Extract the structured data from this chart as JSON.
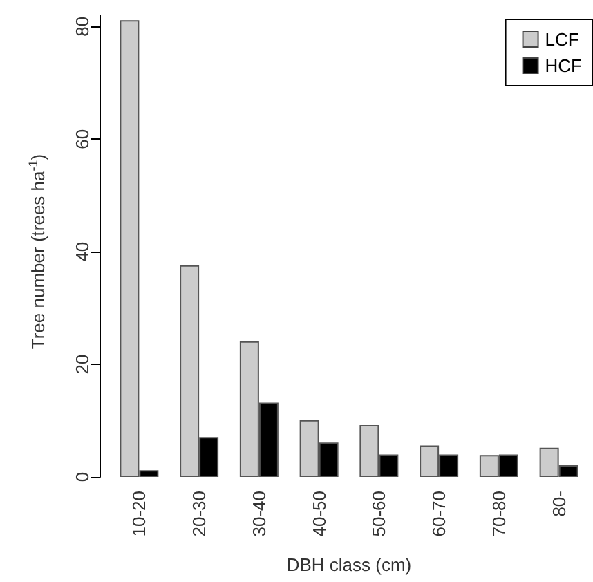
{
  "chart_data": {
    "type": "bar",
    "xlabel": "DBH class (cm)",
    "ylabel": "Tree number (trees ha$^{-1}$)",
    "categories": [
      "10-20",
      "20-30",
      "30-40",
      "40-50",
      "50-60",
      "60-70",
      "70-80",
      "80-"
    ],
    "series": [
      {
        "name": "LCF",
        "color": "#cccccc",
        "values": [
          81.1,
          37.6,
          24.1,
          10.1,
          9.2,
          5.6,
          3.9,
          5.2
        ]
      },
      {
        "name": "HCF",
        "color": "#000000",
        "values": [
          1.2,
          7.1,
          13.2,
          6.1,
          4.0,
          4.0,
          4.0,
          2.1
        ]
      }
    ],
    "ylim": [
      0,
      82
    ],
    "yticks": [
      0,
      20,
      40,
      60,
      80
    ],
    "grid": false,
    "legend": "top right"
  }
}
